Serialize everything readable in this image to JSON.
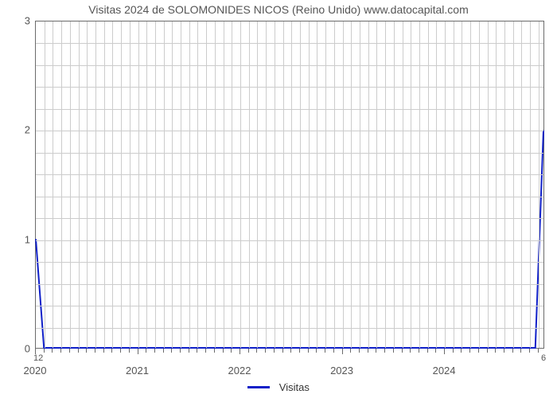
{
  "chart": {
    "type": "line",
    "title": "Visitas 2024 de SOLOMONIDES NICOS (Reino Unido) www.datocapital.com",
    "title_color": "#555555",
    "title_fontsize": 14,
    "background_color": "#ffffff",
    "plot_border_color": "#6b6b6b",
    "grid_color": "#cccccc",
    "axis_label_color": "#555555",
    "axis_label_fontsize": 13,
    "x": {
      "min": 2020,
      "max": 2024.98,
      "major_ticks": [
        2020,
        2021,
        2022,
        2023,
        2024
      ],
      "n_minor_per_major_gap": 11,
      "left_edge_label": "12",
      "right_edge_label": "6"
    },
    "y": {
      "min": 0,
      "max": 3,
      "major_ticks": [
        0,
        1,
        2,
        3
      ],
      "n_minor_between": 4
    },
    "series": {
      "name": "Visitas",
      "color": "#1020c8",
      "line_width": 2,
      "points": [
        {
          "x": 2020.0,
          "y": 1.0
        },
        {
          "x": 2020.08,
          "y": 0.0
        },
        {
          "x": 2024.9,
          "y": 0.0
        },
        {
          "x": 2024.98,
          "y": 2.0
        }
      ]
    },
    "legend": {
      "label": "Visitas",
      "swatch_color": "#1020c8"
    }
  }
}
